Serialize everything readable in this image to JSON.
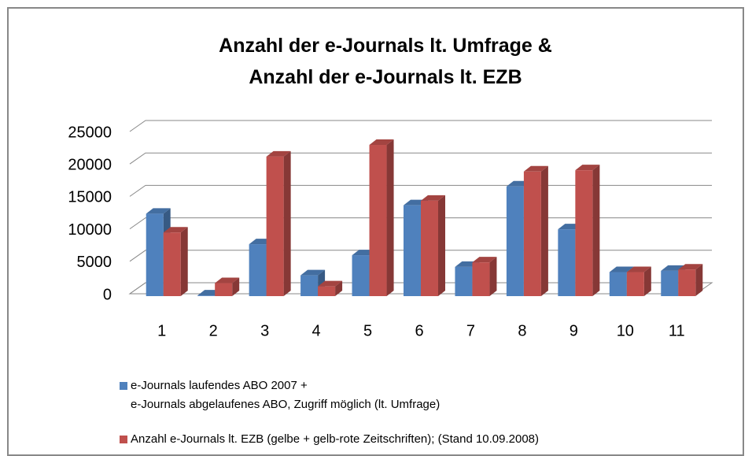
{
  "chart_data": {
    "type": "bar3d",
    "title": "Anzahl der e-Journals lt. Umfrage &\nAnzahl der e-Journals lt. EZB",
    "categories": [
      "1",
      "2",
      "3",
      "4",
      "5",
      "6",
      "7",
      "8",
      "9",
      "10",
      "11"
    ],
    "series": [
      {
        "name": "e-Journals laufendes ABO 2007 +\ne-Journals abgelaufenes ABO, Zugriff möglich (lt. Umfrage)",
        "color": "#4f81bd",
        "values": [
          12700,
          100,
          8000,
          3200,
          6300,
          14000,
          4500,
          16900,
          10300,
          3700,
          3900
        ]
      },
      {
        "name": "Anzahl e-Journals lt. EZB (gelbe + gelb-rote Zeitschriften); (Stand 10.09.2008)",
        "color": "#c0504d",
        "values": [
          9800,
          2000,
          21500,
          1500,
          23300,
          14700,
          5200,
          19200,
          19400,
          3700,
          4100
        ]
      }
    ],
    "ylim": [
      0,
      25000
    ],
    "yticks": [
      0,
      5000,
      10000,
      15000,
      20000,
      25000
    ],
    "grid": true
  }
}
